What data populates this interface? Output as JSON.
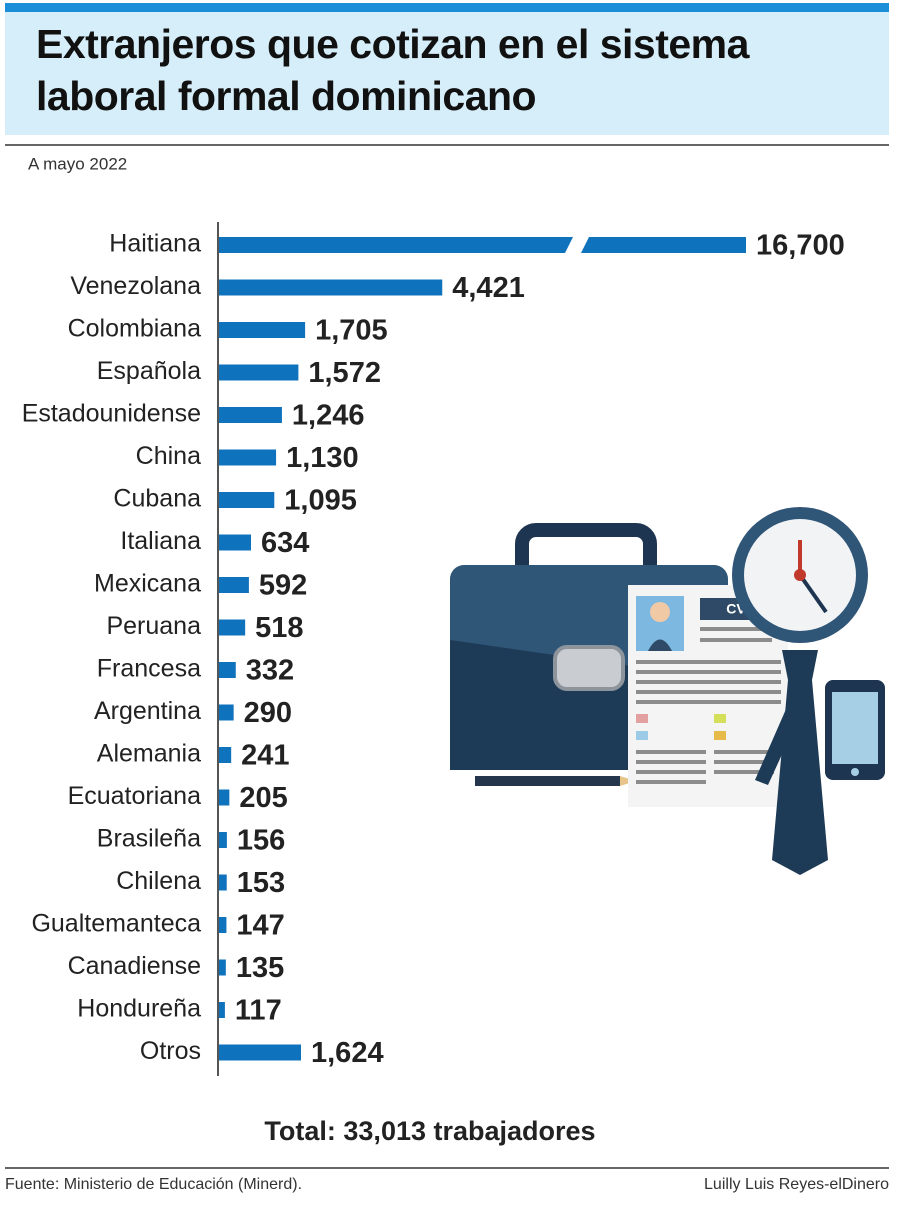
{
  "chart_data": {
    "type": "bar",
    "orientation": "horizontal",
    "title": "Extranjeros que cotizan en el sistema laboral formal dominicano",
    "subtitle": "A mayo 2022",
    "categories": [
      "Haitiana",
      "Venezolana",
      "Colombiana",
      "Española",
      "Estadounidense",
      "China",
      "Cubana",
      "Italiana",
      "Mexicana",
      "Peruana",
      "Francesa",
      "Argentina",
      "Alemania",
      "Ecuatoriana",
      "Brasileña",
      "Chilena",
      "Gualtemanteca",
      "Canadiense",
      "Hondureña",
      "Otros"
    ],
    "values": [
      16700,
      4421,
      1705,
      1572,
      1246,
      1130,
      1095,
      634,
      592,
      518,
      332,
      290,
      241,
      205,
      156,
      153,
      147,
      135,
      117,
      1624
    ],
    "value_labels": [
      "16,700",
      "4,421",
      "1,705",
      "1,572",
      "1,246",
      "1,130",
      "1,095",
      "634",
      "592",
      "518",
      "332",
      "290",
      "241",
      "205",
      "156",
      "153",
      "147",
      "135",
      "117",
      "1,624"
    ],
    "color": "#0f72bd",
    "total": "Total: 33,013 trabajadores",
    "source": "Fuente: Ministerio de Educación (Minerd).",
    "credit": "Luilly Luis Reyes-elDinero"
  }
}
